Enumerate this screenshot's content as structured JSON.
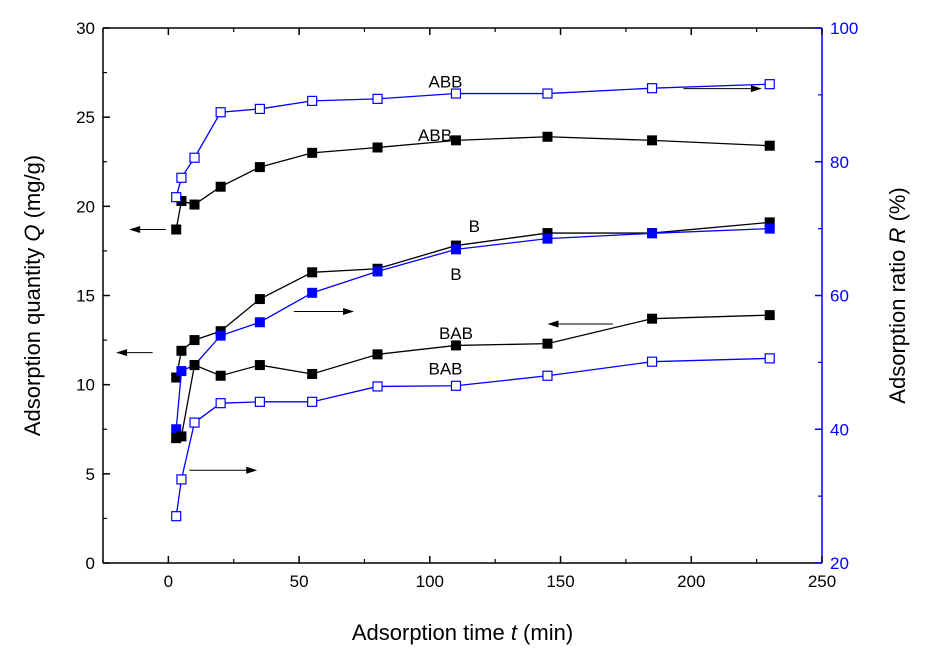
{
  "colors": {
    "left_axis": "#000000",
    "right_axis": "#0000ff",
    "black_series": "#000000",
    "blue_series": "#0000ff"
  },
  "chart_data": {
    "type": "line",
    "x_axis": {
      "label_parts": [
        "Adsorption time ",
        "t",
        " (min)"
      ],
      "range": [
        -25,
        250
      ],
      "ticks": [
        0,
        50,
        100,
        150,
        200,
        250
      ]
    },
    "y_left": {
      "label_parts": [
        "Adsorption quantity ",
        "Q",
        " (mg/g)"
      ],
      "range": [
        0,
        30
      ],
      "ticks": [
        0,
        5,
        10,
        15,
        20,
        25,
        30
      ]
    },
    "y_right": {
      "label_parts": [
        "Adsorption ratio ",
        "R",
        " (%)"
      ],
      "range": [
        20,
        100
      ],
      "ticks": [
        20,
        40,
        60,
        80,
        100
      ]
    },
    "grid": false,
    "series": [
      {
        "axis": "left",
        "color": "black",
        "marker": "filled-square",
        "label": "ABB",
        "x": [
          3,
          5,
          10,
          20,
          35,
          55,
          80,
          110,
          145,
          185,
          230
        ],
        "y": [
          18.7,
          20.3,
          20.1,
          21.1,
          22.2,
          23.0,
          23.3,
          23.7,
          23.9,
          23.7,
          23.4
        ]
      },
      {
        "axis": "right",
        "color": "blue",
        "marker": "open-square",
        "label": "ABB",
        "x": [
          3,
          5,
          10,
          20,
          35,
          55,
          80,
          110,
          145,
          185,
          230
        ],
        "y": [
          74.7,
          77.6,
          80.6,
          87.4,
          87.9,
          89.1,
          89.4,
          90.2,
          90.2,
          91.0,
          91.6
        ]
      },
      {
        "axis": "left",
        "color": "black",
        "marker": "filled-square",
        "label": "B",
        "x": [
          3,
          5,
          10,
          20,
          35,
          55,
          80,
          110,
          145,
          185,
          230
        ],
        "y": [
          10.4,
          11.9,
          12.5,
          13.0,
          14.8,
          16.3,
          16.5,
          17.8,
          18.5,
          18.5,
          19.1
        ]
      },
      {
        "axis": "right",
        "color": "blue",
        "marker": "filled-square",
        "label": "B",
        "x": [
          3,
          5,
          10,
          20,
          35,
          55,
          80,
          110,
          145,
          185,
          230
        ],
        "y": [
          40.0,
          48.7,
          49.6,
          54.0,
          56.0,
          60.4,
          63.6,
          66.9,
          68.5,
          69.3,
          70.0
        ]
      },
      {
        "axis": "left",
        "color": "black",
        "marker": "filled-square",
        "label": "BAB",
        "x": [
          3,
          5,
          10,
          20,
          35,
          55,
          80,
          110,
          145,
          185,
          230
        ],
        "y": [
          7.0,
          7.1,
          11.1,
          10.5,
          11.1,
          10.6,
          11.7,
          12.2,
          12.3,
          13.7,
          13.9
        ]
      },
      {
        "axis": "right",
        "color": "blue",
        "marker": "open-square",
        "label": "BAB",
        "x": [
          3,
          5,
          10,
          20,
          35,
          55,
          80,
          110,
          145,
          185,
          230
        ],
        "y": [
          27.0,
          32.5,
          41.0,
          43.9,
          44.1,
          44.1,
          46.4,
          46.5,
          48.0,
          50.1,
          50.6
        ]
      }
    ],
    "labels": [
      {
        "text": "ABB",
        "x": 106,
        "y_left": 27.0
      },
      {
        "text": "ABB",
        "x": 102,
        "y_left": 24.0
      },
      {
        "text": "B",
        "x": 117,
        "y_left": 18.9
      },
      {
        "text": "B",
        "x": 110,
        "y_left": 16.2
      },
      {
        "text": "BAB",
        "x": 110,
        "y_left": 12.9
      },
      {
        "text": "BAB",
        "x": 106,
        "y_left": 10.9
      }
    ],
    "arrows": [
      {
        "from_x": -1,
        "to_x": -15,
        "y_left": 18.7
      },
      {
        "from_x": 197,
        "to_x": 227,
        "y_left": 26.6
      },
      {
        "from_x": 48,
        "to_x": 71,
        "y_left": 14.1
      },
      {
        "from_x": -6,
        "to_x": -20,
        "y_left": 11.8
      },
      {
        "from_x": 170,
        "to_x": 145,
        "y_left": 13.4
      },
      {
        "from_x": 8,
        "to_x": 34,
        "y_left": 5.2
      }
    ]
  }
}
